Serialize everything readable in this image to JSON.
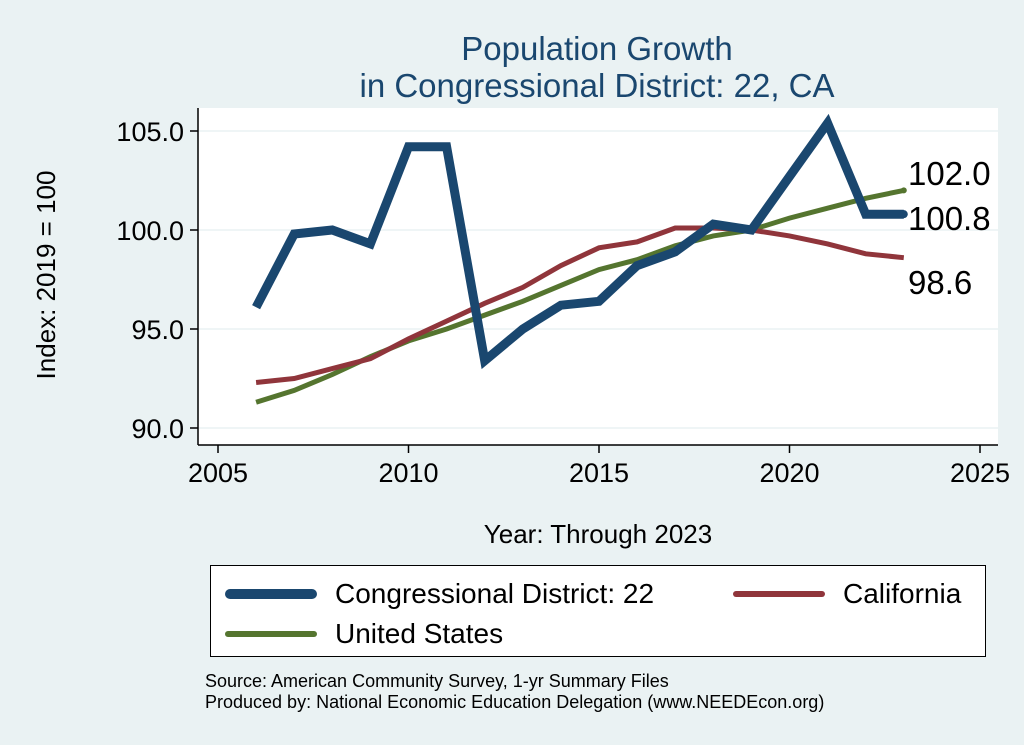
{
  "chart_data": {
    "type": "line",
    "title": [
      "Population Growth",
      "in Congressional District: 22, CA"
    ],
    "xlabel": "Year: Through 2023",
    "ylabel": "Index: 2019 = 100",
    "xlim": [
      2005,
      2025
    ],
    "ylim": [
      90,
      105.5
    ],
    "xticks": [
      2005,
      2010,
      2015,
      2020,
      2025
    ],
    "yticks": [
      90.0,
      95.0,
      100.0,
      105.0
    ],
    "ytick_labels": [
      "90.0",
      "95.0",
      "100.0",
      "105.0"
    ],
    "grid": true,
    "x": [
      2006,
      2007,
      2008,
      2009,
      2010,
      2011,
      2012,
      2013,
      2014,
      2015,
      2016,
      2017,
      2018,
      2019,
      2020,
      2021,
      2022,
      2023
    ],
    "series": [
      {
        "name": "Congressional District: 22",
        "color": "#1a476f",
        "values": [
          96.1,
          99.8,
          100.0,
          99.3,
          104.2,
          104.2,
          93.4,
          95.0,
          96.2,
          96.4,
          98.2,
          98.9,
          100.3,
          100.0,
          102.7,
          105.4,
          100.8,
          100.8
        ]
      },
      {
        "name": "California",
        "color": "#90353b",
        "values": [
          92.3,
          92.5,
          93.0,
          93.5,
          94.5,
          95.4,
          96.3,
          97.1,
          98.2,
          99.1,
          99.4,
          100.1,
          100.1,
          100.0,
          99.7,
          99.3,
          98.8,
          98.6
        ]
      },
      {
        "name": "United States",
        "color": "#55752f",
        "values": [
          91.3,
          91.9,
          92.7,
          93.6,
          94.4,
          95.0,
          95.7,
          96.4,
          97.2,
          98.0,
          98.5,
          99.2,
          99.7,
          100.0,
          100.6,
          101.1,
          101.6,
          102.0
        ]
      }
    ],
    "end_labels": [
      "102.0",
      "100.8",
      "98.6"
    ],
    "legend": {
      "placement": "bottom",
      "items": [
        "Congressional District: 22",
        "California",
        "United States"
      ]
    }
  },
  "source_lines": [
    "Source: American Community Survey, 1-yr Summary Files",
    "Produced by: National Economic Education Delegation (www.NEEDEcon.org)"
  ]
}
